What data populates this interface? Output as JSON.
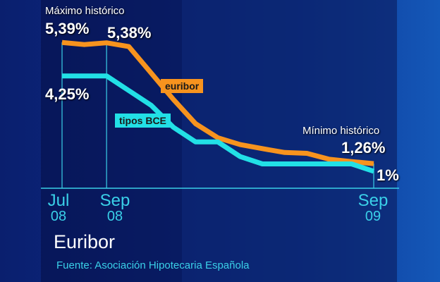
{
  "chart_data": {
    "type": "line",
    "title": "Euribor",
    "source": "Fuente: Asociación Hipotecaria Española",
    "x": [
      "2008-07",
      "2008-08",
      "2008-09",
      "2008-10",
      "2008-11",
      "2008-12",
      "2009-01",
      "2009-02",
      "2009-03",
      "2009-04",
      "2009-05",
      "2009-06",
      "2009-07",
      "2009-08",
      "2009-09"
    ],
    "tick_labels": [
      {
        "x": "2008-07",
        "month": "Jul",
        "year": "08"
      },
      {
        "x": "2008-09",
        "month": "Sep",
        "year": "08"
      },
      {
        "x": "2009-09",
        "month": "Sep",
        "year": "09"
      }
    ],
    "ylim": [
      0.4,
      5.8
    ],
    "grid": false,
    "series": [
      {
        "name": "euribor",
        "color": "#f7931e",
        "values": [
          5.39,
          5.32,
          5.38,
          5.25,
          4.35,
          3.45,
          2.62,
          2.14,
          1.91,
          1.77,
          1.64,
          1.61,
          1.41,
          1.33,
          1.26
        ]
      },
      {
        "name": "tipos BCE",
        "color": "#22e0e6",
        "values": [
          4.25,
          4.25,
          4.25,
          3.75,
          3.25,
          2.5,
          2.0,
          2.0,
          1.5,
          1.25,
          1.25,
          1.25,
          1.25,
          1.25,
          1.0
        ]
      }
    ],
    "annotations": {
      "max_label": "Máximo histórico",
      "max_value": "5,39%",
      "sep08_value": "5,38%",
      "bce_start": "4,25%",
      "min_label": "Mínimo histórico",
      "min_value": "1,26%",
      "bce_end": "1%"
    }
  }
}
